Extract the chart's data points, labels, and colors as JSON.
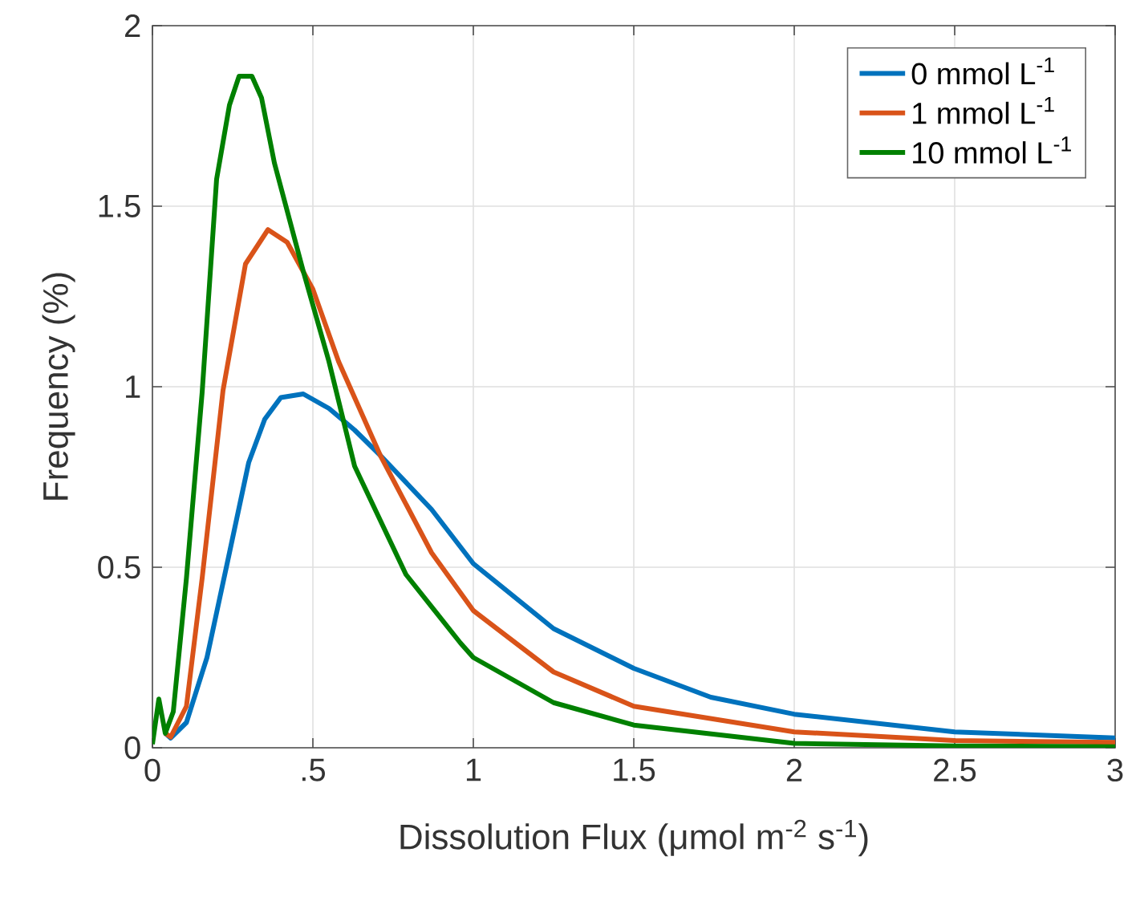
{
  "chart_data": {
    "type": "line",
    "xlabel": "Dissolution Flux (μmol m$^{-2}$ s$^{-1}$)",
    "ylabel": "Frequency (%)",
    "xlim": [
      0,
      3
    ],
    "ylim": [
      0,
      2
    ],
    "xticks": [
      0,
      {
        "value": 0.5,
        "label": ".5"
      },
      1,
      1.5,
      2,
      2.5,
      3
    ],
    "yticks": [
      0,
      0.5,
      1,
      1.5,
      2
    ],
    "grid": true,
    "legend": "top right",
    "line_style": "solid",
    "marker": "none",
    "series": [
      {
        "name": "0 mmol L$^{-1}$",
        "color": "#0072bd",
        "x": [
          0.04,
          0.057,
          0.106,
          0.17,
          0.24,
          0.3,
          0.35,
          0.4,
          0.47,
          0.55,
          0.63,
          0.71,
          0.87,
          1.0,
          1.25,
          1.5,
          1.74,
          2.0,
          2.5,
          3.0
        ],
        "values": [
          0.04,
          0.027,
          0.07,
          0.25,
          0.54,
          0.79,
          0.91,
          0.97,
          0.98,
          0.94,
          0.88,
          0.81,
          0.66,
          0.51,
          0.33,
          0.22,
          0.14,
          0.093,
          0.044,
          0.027
        ]
      },
      {
        "name": "1 mmol L$^{-1}$",
        "color": "#d95319",
        "x": [
          0.04,
          0.057,
          0.106,
          0.155,
          0.22,
          0.29,
          0.36,
          0.42,
          0.5,
          0.58,
          0.71,
          0.87,
          1.0,
          1.25,
          1.5,
          2.0,
          2.5,
          3.0
        ],
        "values": [
          0.04,
          0.03,
          0.115,
          0.47,
          0.99,
          1.34,
          1.435,
          1.4,
          1.27,
          1.07,
          0.81,
          0.54,
          0.38,
          0.21,
          0.115,
          0.044,
          0.02,
          0.015
        ]
      },
      {
        "name": "10 mmol L$^{-1}$",
        "color": "#008000",
        "x": [
          0.0,
          0.02,
          0.04,
          0.065,
          0.106,
          0.155,
          0.2,
          0.24,
          0.27,
          0.31,
          0.34,
          0.38,
          0.47,
          0.55,
          0.63,
          0.71,
          0.79,
          0.96,
          1.0,
          1.12,
          1.25,
          1.5,
          2.0,
          2.5,
          3.0
        ],
        "values": [
          0.01,
          0.135,
          0.04,
          0.1,
          0.47,
          0.985,
          1.575,
          1.78,
          1.86,
          1.86,
          1.8,
          1.62,
          1.32,
          1.07,
          0.78,
          0.63,
          0.48,
          0.29,
          0.25,
          0.19,
          0.125,
          0.063,
          0.012,
          0.005,
          0.003
        ]
      }
    ]
  }
}
